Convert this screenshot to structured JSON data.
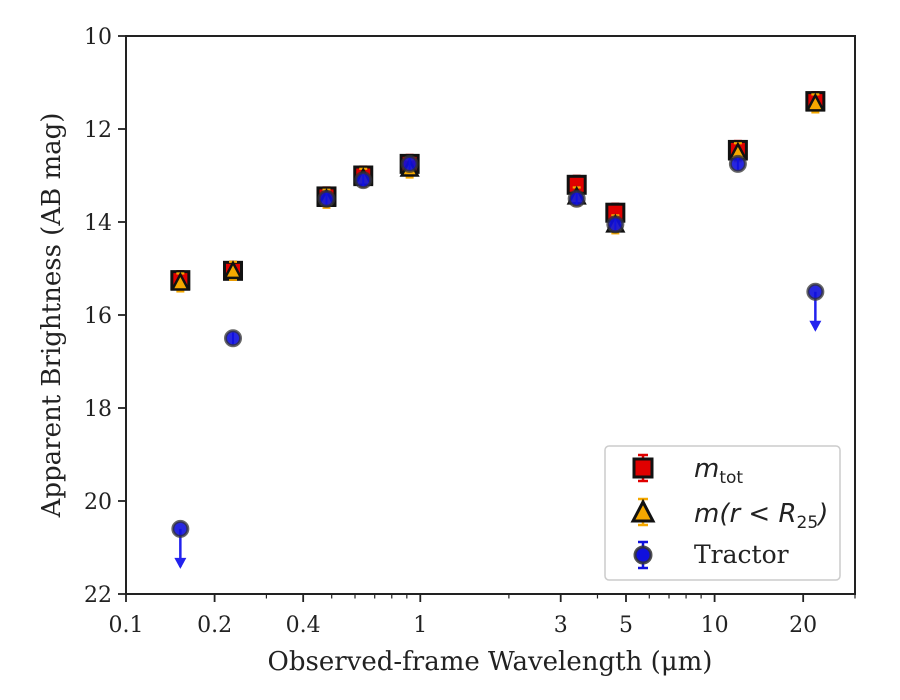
{
  "chart_data": {
    "type": "scatter",
    "xlabel": "Observed-frame Wavelength (μm)",
    "ylabel": "Apparent Brightness (AB mag)",
    "xscale": "log",
    "xlim": [
      0.1,
      30
    ],
    "ylim": [
      22,
      10
    ],
    "y_inverted": true,
    "xticks": [
      0.1,
      0.2,
      0.4,
      1,
      3,
      5,
      10,
      20
    ],
    "xtick_labels": [
      "0.1",
      "0.2",
      "0.4",
      "1",
      "3",
      "5",
      "10",
      "20"
    ],
    "yticks": [
      10,
      12,
      14,
      16,
      18,
      20,
      22
    ],
    "ytick_labels": [
      "10",
      "12",
      "14",
      "16",
      "18",
      "20",
      "22"
    ],
    "grid": false,
    "legend": "bottom-right",
    "legend_entries": [
      {
        "label": "m",
        "sub": "tot",
        "text": ""
      },
      {
        "label": "m",
        "sub": "25",
        "text": "(r < R"
      },
      {
        "label": "Tractor",
        "sub": "",
        "text": ""
      }
    ],
    "series": [
      {
        "name": "m_tot",
        "marker": "square",
        "color": "#e00000",
        "x": [
          0.153,
          0.231,
          0.48,
          0.64,
          0.92,
          3.4,
          4.6,
          12.0,
          22.0
        ],
        "y": [
          15.25,
          15.05,
          13.45,
          13.0,
          12.75,
          13.2,
          13.8,
          12.45,
          11.4
        ]
      },
      {
        "name": "m(r<R25)",
        "marker": "triangle",
        "color": "#f5a800",
        "x": [
          0.153,
          0.231,
          0.48,
          0.64,
          0.92,
          3.4,
          4.6,
          12.0,
          22.0
        ],
        "y": [
          15.3,
          15.05,
          13.5,
          13.05,
          12.85,
          13.45,
          14.05,
          12.5,
          11.45
        ]
      },
      {
        "name": "Tractor",
        "marker": "circle",
        "color": "#1010dd",
        "x": [
          0.153,
          0.231,
          0.48,
          0.64,
          0.92,
          3.4,
          4.6,
          12.0,
          22.0
        ],
        "y": [
          20.6,
          16.5,
          13.5,
          13.1,
          12.75,
          13.5,
          14.05,
          12.75,
          15.5
        ],
        "upper_limit": [
          true,
          false,
          false,
          false,
          false,
          false,
          false,
          false,
          true
        ]
      }
    ]
  }
}
